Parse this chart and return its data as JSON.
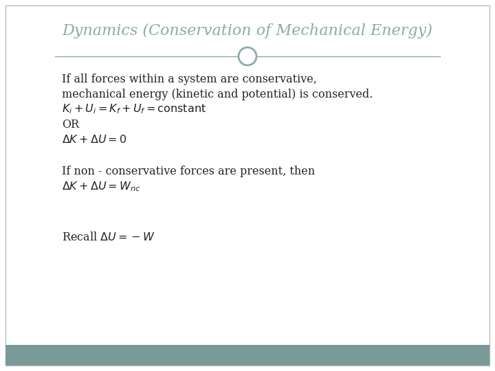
{
  "title": "Dynamics (Conservation of Mechanical Energy)",
  "title_color": "#8aabab",
  "title_fontsize": 16,
  "bg_color": "#ffffff",
  "border_color": "#bbbbbb",
  "footer_color": "#7a9a9a",
  "text_color": "#222222",
  "divider_color": "#8aabab",
  "circle_color": "#8aabab",
  "line1": "If all forces within a system are conservative,",
  "line2": "mechanical energy (kinetic and potential) is conserved.",
  "eq1": "$K_i + U_i = K_f + U_f = \\mathrm{constant}$",
  "line_OR": "OR",
  "eq2": "$\\Delta K + \\Delta U = 0$",
  "line3": "If non - conservative forces are present, then",
  "eq3": "$\\Delta K + \\Delta U = W_{nc}$",
  "line4": "Recall $\\Delta U = -W$",
  "text_fontsize": 11.5
}
